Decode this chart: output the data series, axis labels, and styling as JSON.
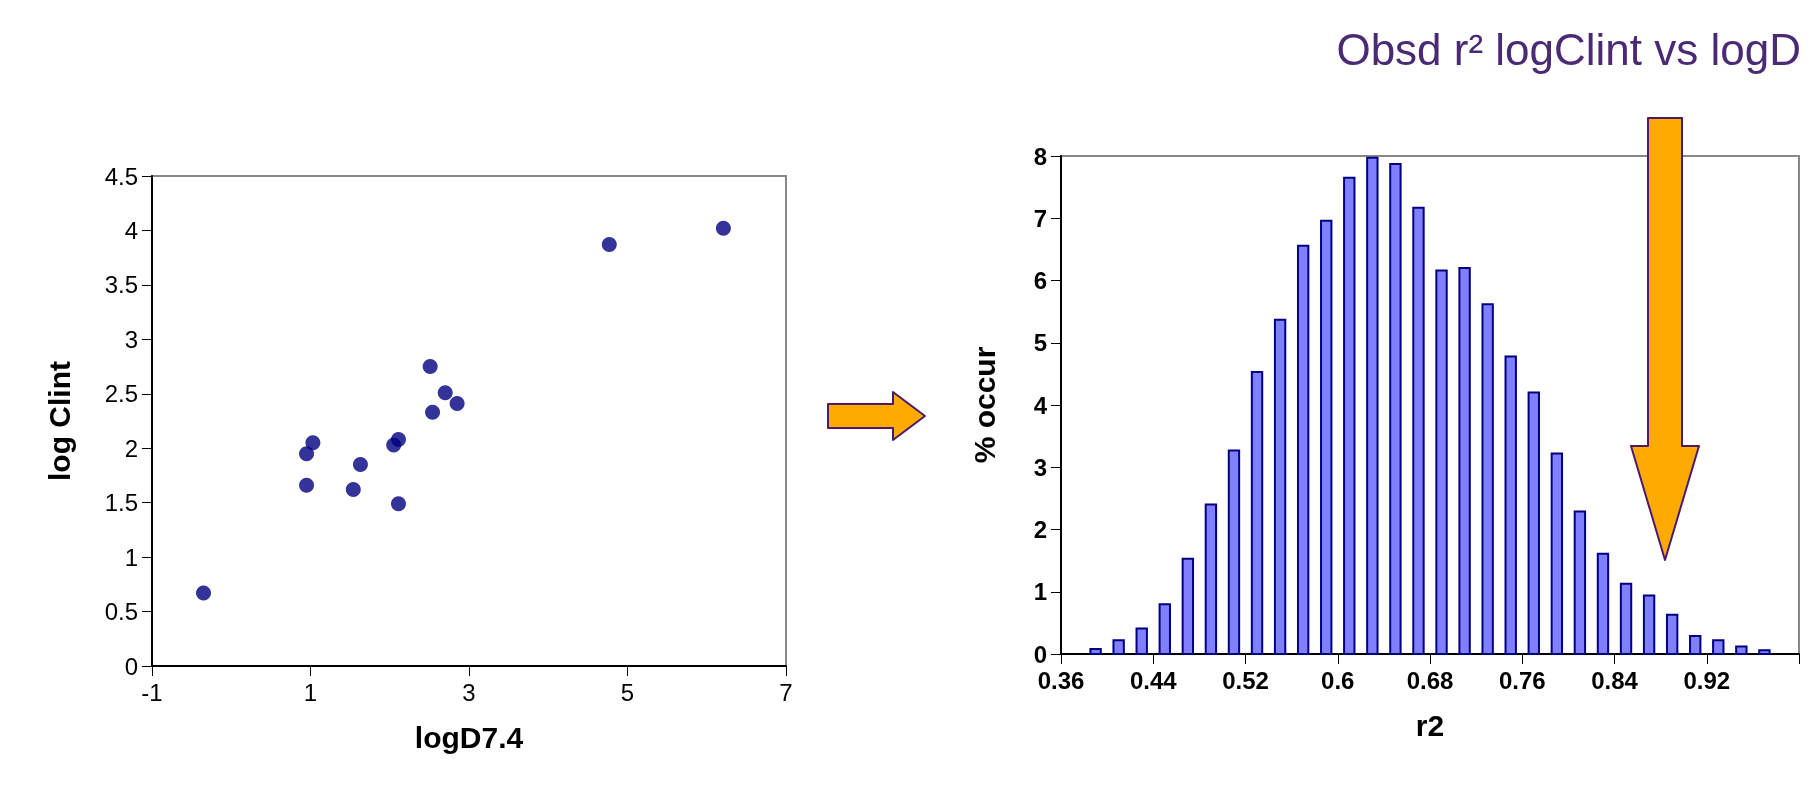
{
  "chart_data": [
    {
      "type": "scatter",
      "xlabel": "logD7.4",
      "ylabel": "log Clint",
      "xlim": [
        -1,
        7
      ],
      "xticks": [
        -1,
        1,
        3,
        5,
        7
      ],
      "ylim": [
        0,
        4.5
      ],
      "yticks": [
        0,
        0.5,
        1,
        1.5,
        2,
        2.5,
        3,
        3.5,
        4,
        4.5
      ],
      "marker": "circle",
      "series": [
        {
          "color": "#000080",
          "x": [
            -0.35,
            0.95,
            0.95,
            1.03,
            1.54,
            1.63,
            2.05,
            2.11,
            2.11,
            2.51,
            2.54,
            2.7,
            2.85,
            4.77,
            6.21
          ],
          "values": [
            0.67,
            1.66,
            1.95,
            2.05,
            1.62,
            1.85,
            2.03,
            2.08,
            1.49,
            2.75,
            2.33,
            2.51,
            2.41,
            3.87,
            4.02
          ]
        }
      ]
    },
    {
      "type": "histogram",
      "title": "Obsd r² logClint vs logD",
      "xlabel": "r2",
      "ylabel": "% occur",
      "color": "#8080ff",
      "xlim": [
        0.36,
        1.0
      ],
      "xticks": [
        0.36,
        0.44,
        0.52,
        0.6,
        0.68,
        0.76,
        0.84,
        0.92,
        {
          "value": 1.0,
          "label": null
        }
      ],
      "ylim": [
        0,
        8
      ],
      "yticks": [
        0,
        1,
        2,
        3,
        4,
        5,
        6,
        7,
        8
      ],
      "bins": [
        0.38,
        0.4,
        0.42,
        0.44,
        0.46,
        0.48,
        0.5,
        0.52,
        0.54,
        0.56,
        0.58,
        0.6,
        0.62,
        0.64,
        0.66,
        0.68,
        0.7,
        0.72,
        0.74,
        0.76,
        0.78,
        0.8,
        0.82,
        0.84,
        0.86,
        0.88,
        0.9,
        0.92,
        0.94,
        0.96,
        0.98
      ],
      "values": [
        0.08,
        0.22,
        0.41,
        0.8,
        1.53,
        2.4,
        3.27,
        4.53,
        5.37,
        6.56,
        6.96,
        7.65,
        7.97,
        7.87,
        7.17,
        6.16,
        6.2,
        5.62,
        4.78,
        4.2,
        3.22,
        2.29,
        1.61,
        1.13,
        0.94,
        0.63,
        0.29,
        0.22,
        0.12,
        0.06
      ]
    }
  ]
}
